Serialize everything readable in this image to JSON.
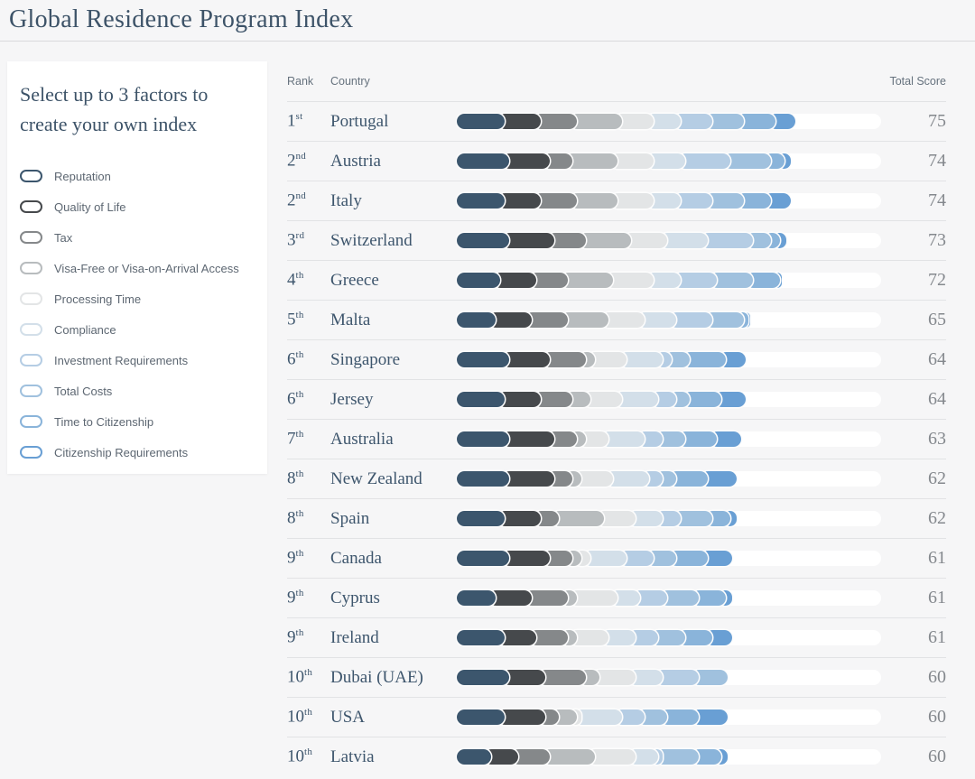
{
  "header": {
    "title": "Global Residence Program Index"
  },
  "sidebar": {
    "heading": "Select up to 3 factors to create your own index",
    "factors": [
      {
        "key": "reputation",
        "label": "Reputation",
        "color": "#3c566d"
      },
      {
        "key": "quality-of-life",
        "label": "Quality of Life",
        "color": "#46494c"
      },
      {
        "key": "tax",
        "label": "Tax",
        "color": "#85888a"
      },
      {
        "key": "visa-free-access",
        "label": "Visa-Free or Visa-on-Arrival Access",
        "color": "#b8bcbe"
      },
      {
        "key": "processing-time",
        "label": "Processing Time",
        "color": "#e3e5e6"
      },
      {
        "key": "compliance",
        "label": "Compliance",
        "color": "#d3dfe9"
      },
      {
        "key": "investment-requirements",
        "label": "Investment Requirements",
        "color": "#b5cde4"
      },
      {
        "key": "total-costs",
        "label": "Total Costs",
        "color": "#a0c1de"
      },
      {
        "key": "time-to-citizenship",
        "label": "Time to Citizenship",
        "color": "#8ab4da"
      },
      {
        "key": "citizenship-requirements",
        "label": "Citizenship Requirements",
        "color": "#699fd4"
      }
    ]
  },
  "table": {
    "headers": {
      "rank": "Rank",
      "country": "Country",
      "total_score": "Total Score"
    }
  },
  "chart_data": {
    "type": "bar",
    "subtype": "stacked-horizontal-ranking",
    "title": "Global Residence Program Index",
    "legend_position": "left-sidebar",
    "axis_max_points": 94,
    "factor_categories": [
      "Reputation",
      "Quality of Life",
      "Tax",
      "Visa-Free or Visa-on-Arrival Access",
      "Processing Time",
      "Compliance",
      "Investment Requirements",
      "Total Costs",
      "Time to Citizenship",
      "Citizenship Requirements"
    ],
    "segment_colors": [
      "#3c566d",
      "#46494c",
      "#85888a",
      "#b8bcbe",
      "#e3e5e6",
      "#d3dfe9",
      "#b5cde4",
      "#a0c1de",
      "#8ab4da",
      "#699fd4"
    ],
    "rows": [
      {
        "rank": "1",
        "ordinal": "st",
        "country": "Portugal",
        "score": 75,
        "segments": [
          9,
          8,
          8,
          10,
          7,
          6,
          7,
          7,
          7,
          6
        ]
      },
      {
        "rank": "2",
        "ordinal": "nd",
        "country": "Austria",
        "score": 74,
        "segments": [
          10,
          9,
          5,
          10,
          8,
          7,
          10,
          9,
          3,
          3
        ]
      },
      {
        "rank": "2",
        "ordinal": "nd",
        "country": "Italy",
        "score": 74,
        "segments": [
          9,
          8,
          8,
          9,
          8,
          6,
          7,
          7,
          6,
          6
        ]
      },
      {
        "rank": "3",
        "ordinal": "rd",
        "country": "Switzerland",
        "score": 73,
        "segments": [
          10,
          10,
          7,
          10,
          8,
          9,
          10,
          4,
          2,
          3
        ]
      },
      {
        "rank": "4",
        "ordinal": "th",
        "country": "Greece",
        "score": 72,
        "segments": [
          8,
          8,
          7,
          10,
          9,
          6,
          8,
          8,
          6,
          2
        ]
      },
      {
        "rank": "5",
        "ordinal": "th",
        "country": "Malta",
        "score": 65,
        "segments": [
          7,
          8,
          8,
          9,
          8,
          7,
          8,
          7,
          1,
          2
        ]
      },
      {
        "rank": "6",
        "ordinal": "th",
        "country": "Singapore",
        "score": 64,
        "segments": [
          10,
          9,
          8,
          2,
          7,
          8,
          2,
          4,
          8,
          6
        ]
      },
      {
        "rank": "6",
        "ordinal": "th",
        "country": "Jersey",
        "score": 64,
        "segments": [
          9,
          8,
          7,
          4,
          7,
          8,
          4,
          3,
          7,
          7
        ]
      },
      {
        "rank": "7",
        "ordinal": "th",
        "country": "Australia",
        "score": 63,
        "segments": [
          10,
          10,
          5,
          2,
          5,
          8,
          4,
          5,
          7,
          7
        ]
      },
      {
        "rank": "8",
        "ordinal": "th",
        "country": "New Zealand",
        "score": 62,
        "segments": [
          10,
          10,
          4,
          2,
          7,
          8,
          3,
          3,
          7,
          8
        ]
      },
      {
        "rank": "8",
        "ordinal": "th",
        "country": "Spain",
        "score": 62,
        "segments": [
          9,
          8,
          4,
          10,
          7,
          6,
          4,
          7,
          4,
          3
        ]
      },
      {
        "rank": "9",
        "ordinal": "th",
        "country": "Canada",
        "score": 61,
        "segments": [
          10,
          9,
          5,
          2,
          2,
          8,
          6,
          5,
          7,
          7
        ]
      },
      {
        "rank": "9",
        "ordinal": "th",
        "country": "Cyprus",
        "score": 61,
        "segments": [
          7,
          8,
          8,
          2,
          9,
          5,
          6,
          7,
          6,
          3
        ]
      },
      {
        "rank": "9",
        "ordinal": "th",
        "country": "Ireland",
        "score": 61,
        "segments": [
          9,
          7,
          7,
          2,
          7,
          6,
          5,
          6,
          6,
          6
        ]
      },
      {
        "rank": "10",
        "ordinal": "th",
        "country": "Dubai (UAE)",
        "score": 60,
        "segments": [
          10,
          8,
          9,
          3,
          8,
          6,
          8,
          8,
          0,
          0
        ]
      },
      {
        "rank": "10",
        "ordinal": "th",
        "country": "USA",
        "score": 60,
        "segments": [
          9,
          9,
          3,
          4,
          1,
          9,
          5,
          5,
          7,
          8
        ]
      },
      {
        "rank": "10",
        "ordinal": "th",
        "country": "Latvia",
        "score": 60,
        "segments": [
          6,
          6,
          7,
          10,
          9,
          5,
          1,
          8,
          5,
          3
        ]
      }
    ]
  }
}
